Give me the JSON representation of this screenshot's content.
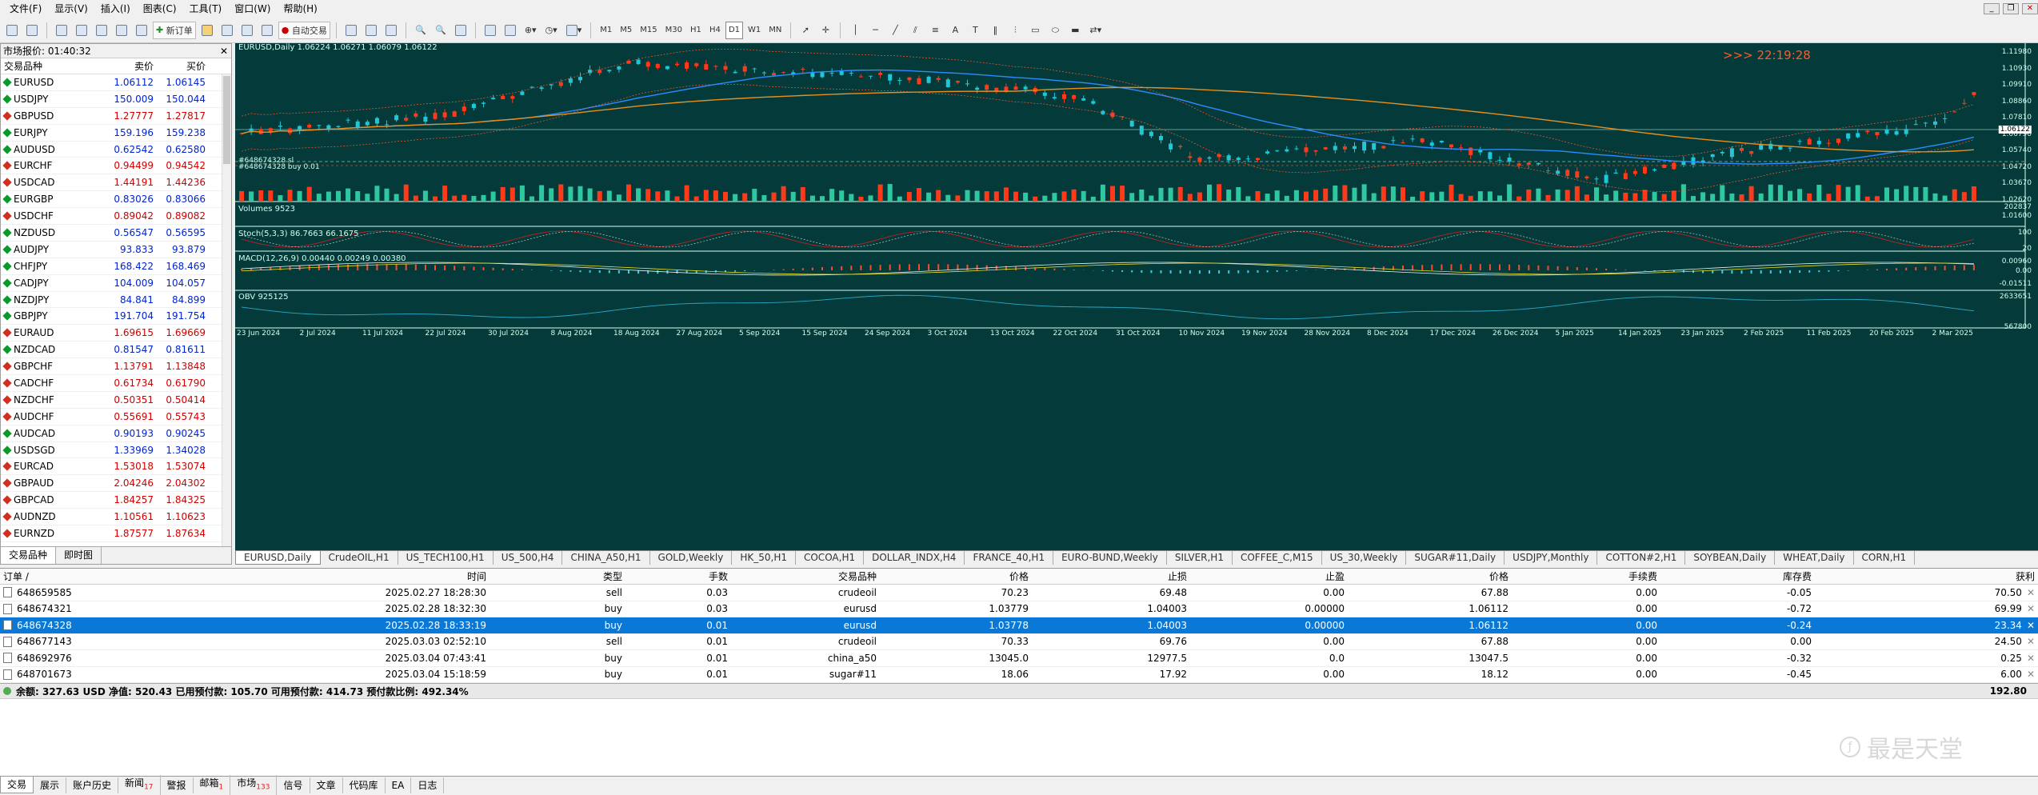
{
  "menu": [
    "文件(F)",
    "显示(V)",
    "插入(I)",
    "图表(C)",
    "工具(T)",
    "窗口(W)",
    "帮助(H)"
  ],
  "toolbar": {
    "new_order": "新订单",
    "auto_trade": "自动交易",
    "timeframes": [
      "M1",
      "M5",
      "M15",
      "M30",
      "H1",
      "H4",
      "D1",
      "W1",
      "MN"
    ],
    "active_tf": "D1"
  },
  "market_watch": {
    "title": "市场报价: 01:40:32",
    "headers": {
      "symbol": "交易品种",
      "bid": "卖价",
      "ask": "买价"
    },
    "rows": [
      {
        "symbol": "EURUSD",
        "bid": "1.06112",
        "ask": "1.06145",
        "dir": "up"
      },
      {
        "symbol": "USDJPY",
        "bid": "150.009",
        "ask": "150.044",
        "dir": "up"
      },
      {
        "symbol": "GBPUSD",
        "bid": "1.27777",
        "ask": "1.27817",
        "dir": "dn"
      },
      {
        "symbol": "EURJPY",
        "bid": "159.196",
        "ask": "159.238",
        "dir": "up"
      },
      {
        "symbol": "AUDUSD",
        "bid": "0.62542",
        "ask": "0.62580",
        "dir": "up"
      },
      {
        "symbol": "EURCHF",
        "bid": "0.94499",
        "ask": "0.94542",
        "dir": "dn"
      },
      {
        "symbol": "USDCAD",
        "bid": "1.44191",
        "ask": "1.44236",
        "dir": "dn"
      },
      {
        "symbol": "EURGBP",
        "bid": "0.83026",
        "ask": "0.83066",
        "dir": "up"
      },
      {
        "symbol": "USDCHF",
        "bid": "0.89042",
        "ask": "0.89082",
        "dir": "dn"
      },
      {
        "symbol": "NZDUSD",
        "bid": "0.56547",
        "ask": "0.56595",
        "dir": "up"
      },
      {
        "symbol": "AUDJPY",
        "bid": "93.833",
        "ask": "93.879",
        "dir": "up"
      },
      {
        "symbol": "CHFJPY",
        "bid": "168.422",
        "ask": "168.469",
        "dir": "up"
      },
      {
        "symbol": "CADJPY",
        "bid": "104.009",
        "ask": "104.057",
        "dir": "up"
      },
      {
        "symbol": "NZDJPY",
        "bid": "84.841",
        "ask": "84.899",
        "dir": "up"
      },
      {
        "symbol": "GBPJPY",
        "bid": "191.704",
        "ask": "191.754",
        "dir": "up"
      },
      {
        "symbol": "EURAUD",
        "bid": "1.69615",
        "ask": "1.69669",
        "dir": "dn"
      },
      {
        "symbol": "NZDCAD",
        "bid": "0.81547",
        "ask": "0.81611",
        "dir": "up"
      },
      {
        "symbol": "GBPCHF",
        "bid": "1.13791",
        "ask": "1.13848",
        "dir": "dn"
      },
      {
        "symbol": "CADCHF",
        "bid": "0.61734",
        "ask": "0.61790",
        "dir": "dn"
      },
      {
        "symbol": "NZDCHF",
        "bid": "0.50351",
        "ask": "0.50414",
        "dir": "dn"
      },
      {
        "symbol": "AUDCHF",
        "bid": "0.55691",
        "ask": "0.55743",
        "dir": "dn"
      },
      {
        "symbol": "AUDCAD",
        "bid": "0.90193",
        "ask": "0.90245",
        "dir": "up"
      },
      {
        "symbol": "USDSGD",
        "bid": "1.33969",
        "ask": "1.34028",
        "dir": "up"
      },
      {
        "symbol": "EURCAD",
        "bid": "1.53018",
        "ask": "1.53074",
        "dir": "dn"
      },
      {
        "symbol": "GBPAUD",
        "bid": "2.04246",
        "ask": "2.04302",
        "dir": "dn"
      },
      {
        "symbol": "GBPCAD",
        "bid": "1.84257",
        "ask": "1.84325",
        "dir": "dn"
      },
      {
        "symbol": "AUDNZD",
        "bid": "1.10561",
        "ask": "1.10623",
        "dir": "dn"
      },
      {
        "symbol": "EURNZD",
        "bid": "1.87577",
        "ask": "1.87634",
        "dir": "dn"
      }
    ],
    "tabs": [
      "交易品种",
      "即时图"
    ]
  },
  "chart": {
    "header": "EURUSD,Daily  1.06224 1.06271 1.06079 1.06122",
    "clock": ">>> 22:19:28",
    "order_label1": "#648674328 sl",
    "order_label2": "#648674328 buy 0.01",
    "volumes_label": "Volumes 9523",
    "stoch_label": "Stoch(5,3,3) 86.7663 66.1675",
    "macd_label": "MACD(12,26,9) 0.00440 0.00249 0.00380",
    "obv_label": "OBV 925125",
    "price_ticks": [
      "1.11980",
      "1.10930",
      "1.09910",
      "1.08860",
      "1.07810",
      "1.06790",
      "1.05740",
      "1.04720",
      "1.03670",
      "1.02620",
      "1.01600"
    ],
    "current_price": "1.06122",
    "vol_tick": "202837",
    "stoch_ticks": [
      "100",
      "80",
      "20",
      "0"
    ],
    "macd_ticks": [
      "0.00960",
      "0.00",
      "-0.01511"
    ],
    "obv_ticks": [
      "2633651",
      "567800"
    ],
    "date_ticks": [
      "23 Jun 2024",
      "2 Jul 2024",
      "11 Jul 2024",
      "22 Jul 2024",
      "30 Jul 2024",
      "8 Aug 2024",
      "18 Aug 2024",
      "27 Aug 2024",
      "5 Sep 2024",
      "15 Sep 2024",
      "24 Sep 2024",
      "3 Oct 2024",
      "13 Oct 2024",
      "22 Oct 2024",
      "31 Oct 2024",
      "10 Nov 2024",
      "19 Nov 2024",
      "28 Nov 2024",
      "8 Dec 2024",
      "17 Dec 2024",
      "26 Dec 2024",
      "5 Jan 2025",
      "14 Jan 2025",
      "23 Jan 2025",
      "2 Feb 2025",
      "11 Feb 2025",
      "20 Feb 2025",
      "2 Mar 2025"
    ],
    "colors": {
      "bg": "#053a3a",
      "up": "#1ec8d8",
      "dn": "#ff3a1a",
      "ma_fast": "#2a8cff",
      "ma_slow": "#e8901e"
    }
  },
  "symbol_tabs": [
    "EURUSD,Daily",
    "CrudeOIL,H1",
    "US_TECH100,H1",
    "US_500,H4",
    "CHINA_A50,H1",
    "GOLD,Weekly",
    "HK_50,H1",
    "COCOA,H1",
    "DOLLAR_INDX,H4",
    "FRANCE_40,H1",
    "EURO-BUND,Weekly",
    "SILVER,H1",
    "COFFEE_C,M15",
    "US_30,Weekly",
    "SUGAR#11,Daily",
    "USDJPY,Monthly",
    "COTTON#2,H1",
    "SOYBEAN,Daily",
    "WHEAT,Daily",
    "CORN,H1"
  ],
  "terminal": {
    "headers": [
      "订单 /",
      "时间",
      "类型",
      "手数",
      "交易品种",
      "价格",
      "止损",
      "止盈",
      "价格",
      "手续费",
      "库存费",
      "获利"
    ],
    "orders": [
      {
        "id": "648659585",
        "time": "2025.02.27 18:28:30",
        "type": "sell",
        "lots": "0.03",
        "symbol": "crudeoil",
        "price": "70.23",
        "sl": "69.48",
        "tp": "0.00",
        "cur": "67.88",
        "fee": "0.00",
        "swap": "-0.05",
        "profit": "70.50",
        "selected": false
      },
      {
        "id": "648674321",
        "time": "2025.02.28 18:32:30",
        "type": "buy",
        "lots": "0.03",
        "symbol": "eurusd",
        "price": "1.03779",
        "sl": "1.04003",
        "tp": "0.00000",
        "cur": "1.06112",
        "fee": "0.00",
        "swap": "-0.72",
        "profit": "69.99",
        "selected": false
      },
      {
        "id": "648674328",
        "time": "2025.02.28 18:33:19",
        "type": "buy",
        "lots": "0.01",
        "symbol": "eurusd",
        "price": "1.03778",
        "sl": "1.04003",
        "tp": "0.00000",
        "cur": "1.06112",
        "fee": "0.00",
        "swap": "-0.24",
        "profit": "23.34",
        "selected": true
      },
      {
        "id": "648677143",
        "time": "2025.03.03 02:52:10",
        "type": "sell",
        "lots": "0.01",
        "symbol": "crudeoil",
        "price": "70.33",
        "sl": "69.76",
        "tp": "0.00",
        "cur": "67.88",
        "fee": "0.00",
        "swap": "0.00",
        "profit": "24.50",
        "selected": false
      },
      {
        "id": "648692976",
        "time": "2025.03.04 07:43:41",
        "type": "buy",
        "lots": "0.01",
        "symbol": "china_a50",
        "price": "13045.0",
        "sl": "12977.5",
        "tp": "0.0",
        "cur": "13047.5",
        "fee": "0.00",
        "swap": "-0.32",
        "profit": "0.25",
        "selected": false
      },
      {
        "id": "648701673",
        "time": "2025.03.04 15:18:59",
        "type": "buy",
        "lots": "0.01",
        "symbol": "sugar#11",
        "price": "18.06",
        "sl": "17.92",
        "tp": "0.00",
        "cur": "18.12",
        "fee": "0.00",
        "swap": "-0.45",
        "profit": "6.00",
        "selected": false
      }
    ],
    "balance_line": "余额: 327.63 USD  净值: 520.43  已用预付款: 105.70  可用预付款: 414.73  预付款比例: 492.34%",
    "total_profit": "192.80",
    "tabs": [
      {
        "label": "交易",
        "badge": ""
      },
      {
        "label": "展示",
        "badge": ""
      },
      {
        "label": "账户历史",
        "badge": ""
      },
      {
        "label": "新闻",
        "badge": "17"
      },
      {
        "label": "警报",
        "badge": ""
      },
      {
        "label": "邮箱",
        "badge": "1"
      },
      {
        "label": "市场",
        "badge": "133"
      },
      {
        "label": "信号",
        "badge": ""
      },
      {
        "label": "文章",
        "badge": ""
      },
      {
        "label": "代码库",
        "badge": ""
      },
      {
        "label": "EA",
        "badge": ""
      },
      {
        "label": "日志",
        "badge": ""
      }
    ]
  },
  "watermark": "最是天堂"
}
